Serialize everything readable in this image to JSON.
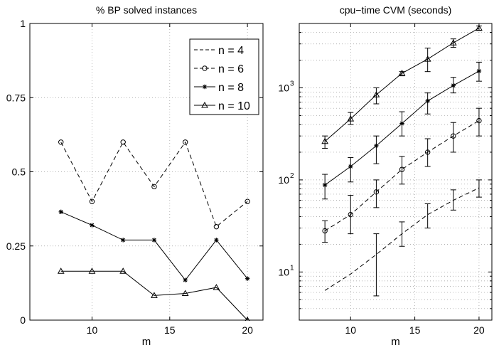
{
  "chart_data": [
    {
      "type": "line",
      "title": "% BP solved instances",
      "xlabel": "m",
      "ylabel": "",
      "xlim": [
        6,
        21
      ],
      "ylim": [
        0,
        1
      ],
      "xscale": "linear",
      "yscale": "linear",
      "grid": true,
      "x_ticks": [
        10,
        15,
        20
      ],
      "x_tick_labels": [
        "10",
        "15",
        "20"
      ],
      "y_ticks": [
        0,
        0.25,
        0.5,
        0.75,
        1
      ],
      "y_tick_labels": [
        "0",
        "0.25",
        "0.5",
        "0.75",
        "1"
      ],
      "legend": {
        "placement": "top-right",
        "entries": [
          "n = 4",
          "n = 6",
          "n = 8",
          "n = 10"
        ]
      },
      "x": [
        8,
        10,
        12,
        14,
        16,
        18,
        20
      ],
      "series": [
        {
          "name": "n = 4",
          "line": "dashed",
          "marker": "none",
          "values": [
            1,
            1,
            1,
            1,
            1,
            1,
            1
          ]
        },
        {
          "name": "n = 6",
          "line": "dashed",
          "marker": "circle",
          "values": [
            0.6,
            0.4,
            0.6,
            0.45,
            0.6,
            0.315,
            0.4
          ]
        },
        {
          "name": "n = 8",
          "line": "solid",
          "marker": "star",
          "values": [
            0.365,
            0.32,
            0.27,
            0.27,
            0.135,
            0.27,
            0.14
          ]
        },
        {
          "name": "n = 10",
          "line": "solid",
          "marker": "triangle",
          "values": [
            0.165,
            0.165,
            0.165,
            0.083,
            0.09,
            0.11,
            0
          ]
        }
      ]
    },
    {
      "type": "line",
      "title": "cpu−time CVM (seconds)",
      "xlabel": "m",
      "ylabel": "",
      "xlim": [
        6,
        21
      ],
      "ylim": [
        3,
        5000
      ],
      "xscale": "linear",
      "yscale": "log",
      "grid": true,
      "x_ticks": [
        10,
        15,
        20
      ],
      "x_tick_labels": [
        "10",
        "15",
        "20"
      ],
      "y_ticks": [
        10,
        100,
        1000
      ],
      "y_tick_labels": [
        "10",
        "10",
        "10"
      ],
      "y_tick_exponents": [
        "1",
        "2",
        "3"
      ],
      "x": [
        8,
        10,
        12,
        14,
        16,
        18,
        20
      ],
      "series": [
        {
          "name": "n = 4",
          "line": "dashed",
          "marker": "none",
          "values": [
            6.3,
            9.5,
            15.5,
            26,
            42,
            60,
            82
          ],
          "errors": [
            null,
            null,
            [
              5.5,
              26
            ],
            [
              19,
              35
            ],
            [
              30,
              55
            ],
            [
              47,
              78
            ],
            [
              65,
              100
            ]
          ]
        },
        {
          "name": "n = 6",
          "line": "dashed",
          "marker": "circle",
          "values": [
            28,
            42,
            74,
            130,
            200,
            300,
            440
          ],
          "errors": [
            [
              21,
              36
            ],
            [
              26,
              68
            ],
            [
              50,
              100
            ],
            [
              90,
              180
            ],
            [
              140,
              280
            ],
            [
              200,
              420
            ],
            [
              300,
              600
            ]
          ]
        },
        {
          "name": "n = 8",
          "line": "solid",
          "marker": "star",
          "values": [
            88,
            140,
            235,
            410,
            720,
            1060,
            1520
          ],
          "errors": [
            [
              62,
              115
            ],
            [
              95,
              175
            ],
            [
              150,
              300
            ],
            [
              300,
              550
            ],
            [
              520,
              880
            ],
            [
              880,
              1300
            ],
            [
              1180,
              1900
            ]
          ]
        },
        {
          "name": "n = 10",
          "line": "solid",
          "marker": "triangle",
          "values": [
            262,
            460,
            840,
            1440,
            2050,
            3080,
            4450
          ],
          "errors": [
            [
              220,
              300
            ],
            [
              400,
              540
            ],
            [
              670,
              1000
            ],
            [
              1350,
              1500
            ],
            [
              1500,
              2700
            ],
            [
              2750,
              3400
            ],
            [
              4200,
              4700
            ]
          ]
        }
      ]
    }
  ]
}
